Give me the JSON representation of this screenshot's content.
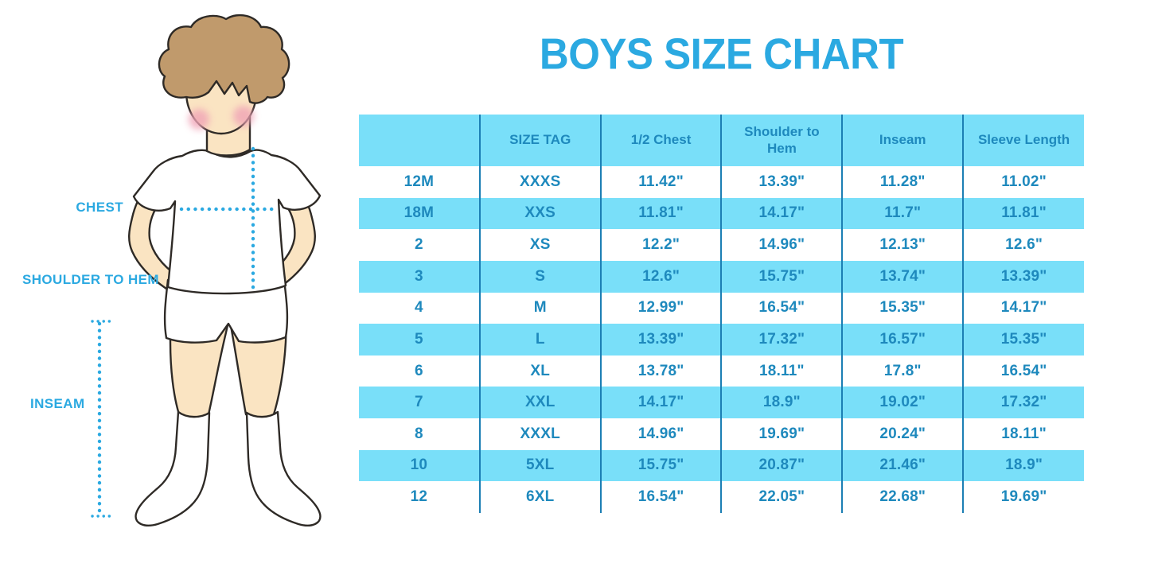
{
  "title": "BOYS SIZE CHART",
  "colors": {
    "accent_blue": "#2BA9E1",
    "table_fill_blue": "#79DFF9",
    "table_text_blue": "#1E89BD",
    "table_line_blue": "#1C7FB4",
    "skin": "#FAE4C2",
    "hair_brown": "#C09A6C",
    "cheek_pink": "#F0A3B6",
    "outline": "#2E2A26"
  },
  "figure": {
    "labels": {
      "chest": "CHEST",
      "shoulder_to_hem": "SHOULDER TO HEM",
      "inseam": "INSEAM"
    }
  },
  "chart_data": {
    "type": "table",
    "title": "BOYS SIZE CHART",
    "columns": [
      "",
      "SIZE TAG",
      "1/2 Chest",
      "Shoulder to Hem",
      "Inseam",
      "Sleeve Length"
    ],
    "rows": [
      [
        "12M",
        "XXXS",
        "11.42\"",
        "13.39\"",
        "11.28\"",
        "11.02\""
      ],
      [
        "18M",
        "XXS",
        "11.81\"",
        "14.17\"",
        "11.7\"",
        "11.81\""
      ],
      [
        "2",
        "XS",
        "12.2\"",
        "14.96\"",
        "12.13\"",
        "12.6\""
      ],
      [
        "3",
        "S",
        "12.6\"",
        "15.75\"",
        "13.74\"",
        "13.39\""
      ],
      [
        "4",
        "M",
        "12.99\"",
        "16.54\"",
        "15.35\"",
        "14.17\""
      ],
      [
        "5",
        "L",
        "13.39\"",
        "17.32\"",
        "16.57\"",
        "15.35\""
      ],
      [
        "6",
        "XL",
        "13.78\"",
        "18.11\"",
        "17.8\"",
        "16.54\""
      ],
      [
        "7",
        "XXL",
        "14.17\"",
        "18.9\"",
        "19.02\"",
        "17.32\""
      ],
      [
        "8",
        "XXXL",
        "14.96\"",
        "19.69\"",
        "20.24\"",
        "18.11\""
      ],
      [
        "10",
        "5XL",
        "15.75\"",
        "20.87\"",
        "21.46\"",
        "18.9\""
      ],
      [
        "12",
        "6XL",
        "16.54\"",
        "22.05\"",
        "22.68\"",
        "19.69\""
      ]
    ],
    "layout": {
      "striped": true,
      "stripe_pattern": "header and every second data row light blue, others white",
      "column_separators": "vertical dark blue lines, no outer border"
    }
  }
}
